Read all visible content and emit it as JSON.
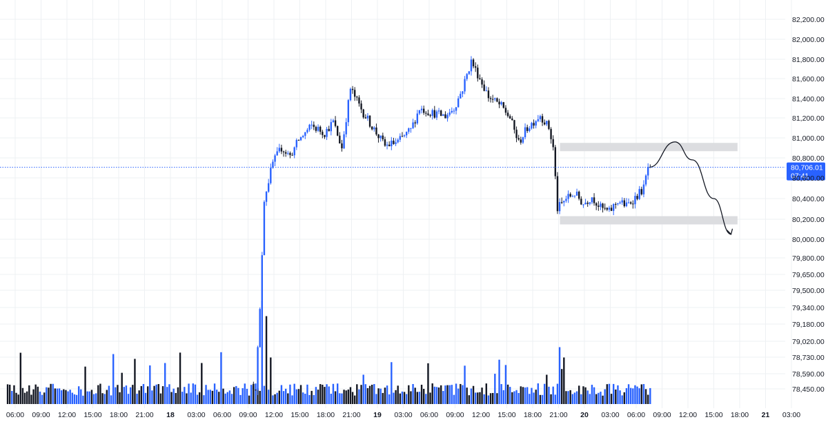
{
  "colors": {
    "up": "#2962ff",
    "down": "#131722",
    "grid": "#eef0f3",
    "zone": "#dcdde0",
    "last_price_line": "#2962ff",
    "arrow": "#131722"
  },
  "chart_data": {
    "type": "candlestick",
    "y_axis": {
      "scale": "log",
      "ticks": [
        "82,200.00",
        "82,000.00",
        "81,800.00",
        "81,600.00",
        "81,400.00",
        "81,200.00",
        "81,000.00",
        "80,800.00",
        "80,600.00",
        "80,400.00",
        "80,200.00",
        "80,000.00",
        "79,800.00",
        "79,650.00",
        "79,500.00",
        "79,340.00",
        "79,180.00",
        "79,020.00",
        "78,730.00",
        "78,590.00",
        "78,450.00"
      ]
    },
    "x_axis": {
      "ticks": [
        {
          "label": "06:00",
          "bold": false
        },
        {
          "label": "09:00",
          "bold": false
        },
        {
          "label": "12:00",
          "bold": false
        },
        {
          "label": "15:00",
          "bold": false
        },
        {
          "label": "18:00",
          "bold": false
        },
        {
          "label": "21:00",
          "bold": false
        },
        {
          "label": "18",
          "bold": true
        },
        {
          "label": "03:00",
          "bold": false
        },
        {
          "label": "06:00",
          "bold": false
        },
        {
          "label": "09:00",
          "bold": false
        },
        {
          "label": "12:00",
          "bold": false
        },
        {
          "label": "15:00",
          "bold": false
        },
        {
          "label": "18:00",
          "bold": false
        },
        {
          "label": "21:00",
          "bold": false
        },
        {
          "label": "19",
          "bold": true
        },
        {
          "label": "03:00",
          "bold": false
        },
        {
          "label": "06:00",
          "bold": false
        },
        {
          "label": "09:00",
          "bold": false
        },
        {
          "label": "12:00",
          "bold": false
        },
        {
          "label": "15:00",
          "bold": false
        },
        {
          "label": "18:00",
          "bold": false
        },
        {
          "label": "21:00",
          "bold": false
        },
        {
          "label": "20",
          "bold": true
        },
        {
          "label": "03:00",
          "bold": false
        },
        {
          "label": "06:00",
          "bold": false
        },
        {
          "label": "09:00",
          "bold": false
        },
        {
          "label": "12:00",
          "bold": false
        },
        {
          "label": "15:00",
          "bold": false
        },
        {
          "label": "18:00",
          "bold": false
        },
        {
          "label": "21",
          "bold": true
        },
        {
          "label": "03:00",
          "bold": false
        }
      ]
    },
    "last_price": {
      "value": 80706.01,
      "label": "80,706.01",
      "countdown": "07:41"
    },
    "zones": [
      {
        "from": 80880,
        "to": 80950,
        "label": ""
      },
      {
        "from": 80180,
        "to": 80230,
        "label": ""
      }
    ],
    "projection_path": [
      {
        "time": "20 07:30",
        "price": 80706
      },
      {
        "time": "20 10:30",
        "price": 80960
      },
      {
        "time": "20 12:30",
        "price": 80780
      },
      {
        "time": "20 15:00",
        "price": 80400
      },
      {
        "time": "20 17:00",
        "price": 80050
      }
    ],
    "price_path": [
      {
        "time": "17 05:00",
        "price": 78470
      },
      {
        "time": "17 08:00",
        "price": 78480
      },
      {
        "time": "17 12:00",
        "price": 78470
      },
      {
        "time": "18 00:00",
        "price": 78460
      },
      {
        "time": "18 06:00",
        "price": 78470
      },
      {
        "time": "18 10:00",
        "price": 78480
      },
      {
        "time": "18 10:30",
        "price": 79300
      },
      {
        "time": "18 11:00",
        "price": 80400
      },
      {
        "time": "18 12:00",
        "price": 80750
      },
      {
        "time": "18 13:00",
        "price": 80900
      },
      {
        "time": "18 14:00",
        "price": 80820
      },
      {
        "time": "18 15:00",
        "price": 80980
      },
      {
        "time": "18 16:30",
        "price": 81120
      },
      {
        "time": "18 18:00",
        "price": 81050
      },
      {
        "time": "18 19:00",
        "price": 81160
      },
      {
        "time": "18 20:00",
        "price": 80900
      },
      {
        "time": "18 21:00",
        "price": 81500
      },
      {
        "time": "18 22:30",
        "price": 81250
      },
      {
        "time": "19 00:00",
        "price": 81050
      },
      {
        "time": "19 01:00",
        "price": 80920
      },
      {
        "time": "19 02:30",
        "price": 80960
      },
      {
        "time": "19 04:00",
        "price": 81080
      },
      {
        "time": "19 05:00",
        "price": 81300
      },
      {
        "time": "19 06:30",
        "price": 81250
      },
      {
        "time": "19 08:00",
        "price": 81220
      },
      {
        "time": "19 09:00",
        "price": 81300
      },
      {
        "time": "19 10:00",
        "price": 81500
      },
      {
        "time": "19 11:00",
        "price": 81780
      },
      {
        "time": "19 12:00",
        "price": 81600
      },
      {
        "time": "19 13:00",
        "price": 81420
      },
      {
        "time": "19 14:30",
        "price": 81320
      },
      {
        "time": "19 15:30",
        "price": 81200
      },
      {
        "time": "19 16:30",
        "price": 80950
      },
      {
        "time": "19 17:30",
        "price": 81100
      },
      {
        "time": "19 19:00",
        "price": 81230
      },
      {
        "time": "19 20:00",
        "price": 81100
      },
      {
        "time": "19 20:30",
        "price": 80900
      },
      {
        "time": "19 21:00",
        "price": 80300
      },
      {
        "time": "19 22:00",
        "price": 80400
      },
      {
        "time": "19 23:00",
        "price": 80450
      },
      {
        "time": "20 00:00",
        "price": 80350
      },
      {
        "time": "20 01:00",
        "price": 80420
      },
      {
        "time": "20 02:00",
        "price": 80310
      },
      {
        "time": "20 03:00",
        "price": 80270
      },
      {
        "time": "20 04:00",
        "price": 80380
      },
      {
        "time": "20 05:00",
        "price": 80330
      },
      {
        "time": "20 06:00",
        "price": 80410
      },
      {
        "time": "20 07:00",
        "price": 80500
      },
      {
        "time": "20 07:30",
        "price": 80706
      }
    ],
    "volume_spikes": [
      {
        "time": "18 10:30",
        "relative": 1.0
      },
      {
        "time": "18 11:00",
        "relative": 0.85
      },
      {
        "time": "18 11:30",
        "relative": 0.45
      },
      {
        "time": "19 21:00",
        "relative": 0.55
      },
      {
        "time": "19 21:30",
        "relative": 0.45
      }
    ]
  }
}
